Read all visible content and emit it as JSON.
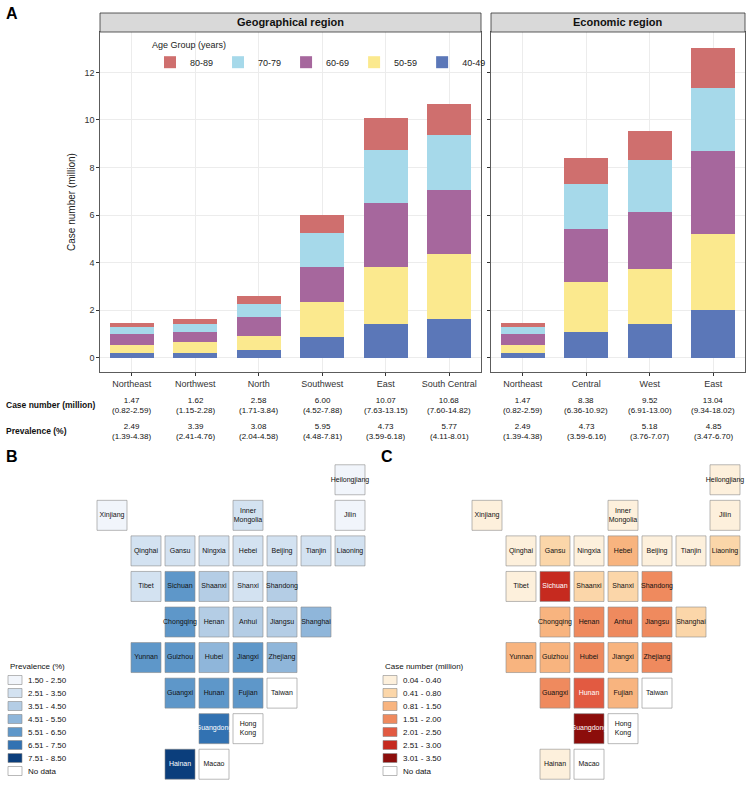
{
  "chart_data": [
    {
      "type": "bar",
      "panel": "A",
      "title": "Geographical region",
      "stacked": true,
      "grid": true,
      "ylabel": "Case number (million)",
      "legend": "top",
      "legend_title": "Age Group (years)",
      "categories": [
        "Northeast",
        "Northwest",
        "North",
        "Southwest",
        "East",
        "South Central"
      ],
      "series": [
        {
          "name": "40-49",
          "color": "#5b77b8",
          "values": [
            0.18,
            0.2,
            0.32,
            0.88,
            1.42,
            1.65
          ]
        },
        {
          "name": "50-59",
          "color": "#fbe98e",
          "values": [
            0.35,
            0.45,
            0.6,
            1.45,
            2.4,
            2.7
          ]
        },
        {
          "name": "60-69",
          "color": "#a6679d",
          "values": [
            0.45,
            0.45,
            0.8,
            1.5,
            2.68,
            2.72
          ]
        },
        {
          "name": "70-79",
          "color": "#a6d9ea",
          "values": [
            0.3,
            0.3,
            0.55,
            1.4,
            2.25,
            2.28
          ]
        },
        {
          "name": "80-89",
          "color": "#cf6f6e",
          "values": [
            0.19,
            0.22,
            0.31,
            0.77,
            1.32,
            1.33
          ]
        }
      ],
      "ylim": [
        -0.6,
        13.7
      ],
      "yticks": [
        0,
        2,
        4,
        6,
        8,
        10,
        12
      ],
      "rows": [
        {
          "label": "Case number (million)",
          "values": [
            "1.47 (0.82-2.59)",
            "1.62 (1.15-2.28)",
            "2.58 (1.71-3.84)",
            "6.00 (4.52-7.88)",
            "10.07 (7.63-13.15)",
            "10.68 (7.60-14.82)"
          ]
        },
        {
          "label": "Prevalence (%)",
          "values": [
            "2.49 (1.39-4.38)",
            "3.39 (2.41-4.76)",
            "3.08 (2.04-4.58)",
            "5.95 (4.48-7.81)",
            "4.73 (3.59-6.18)",
            "5.77 (4.11-8.01)"
          ]
        }
      ]
    },
    {
      "type": "bar",
      "title": "Economic region",
      "stacked": true,
      "grid": true,
      "tick_labels": "x",
      "categories": [
        "Northeast",
        "Central",
        "West",
        "East"
      ],
      "series": [
        {
          "name": "40-49",
          "color": "#5b77b8",
          "values": [
            0.18,
            1.1,
            1.42,
            2.0
          ]
        },
        {
          "name": "50-59",
          "color": "#fbe98e",
          "values": [
            0.35,
            2.1,
            2.3,
            3.2
          ]
        },
        {
          "name": "60-69",
          "color": "#a6679d",
          "values": [
            0.45,
            2.2,
            2.43,
            3.48
          ]
        },
        {
          "name": "70-79",
          "color": "#a6d9ea",
          "values": [
            0.3,
            1.9,
            2.15,
            2.67
          ]
        },
        {
          "name": "80-89",
          "color": "#cf6f6e",
          "values": [
            0.19,
            1.08,
            1.22,
            1.69
          ]
        }
      ],
      "ylim": [
        -0.6,
        13.7
      ],
      "yticks": [
        0,
        2,
        4,
        6,
        8,
        10,
        12
      ],
      "rows": [
        {
          "values": [
            "1.47 (0.82-2.59)",
            "8.38 (6.36-10.92)",
            "9.52 (6.91-13.00)",
            "13.04 (9.34-18.02)"
          ]
        },
        {
          "values": [
            "2.49 (1.39-4.38)",
            "4.73 (3.59-6.16)",
            "5.18 (3.76-7.07)",
            "4.85 (3.47-6.70)"
          ]
        }
      ]
    },
    {
      "type": "map",
      "panel": "B",
      "legend_title": "Prevalence (%)",
      "classes": [
        {
          "label": "1.50 - 2.50",
          "color": "#f1f5fb"
        },
        {
          "label": "2.51 - 3.50",
          "color": "#d3e2f1"
        },
        {
          "label": "3.51 - 4.50",
          "color": "#b4cde5"
        },
        {
          "label": "4.51 - 5.50",
          "color": "#8fb6da"
        },
        {
          "label": "5.51 - 6.50",
          "color": "#5e97c9"
        },
        {
          "label": "6.51 - 7.50",
          "color": "#3272b2"
        },
        {
          "label": "7.51 - 8.50",
          "color": "#0b3e7c"
        }
      ],
      "no_data": {
        "label": "No data",
        "color": "#ffffff"
      },
      "regions": [
        {
          "name": "Heilongjiang",
          "class": 0
        },
        {
          "name": "Jilin",
          "class": 0
        },
        {
          "name": "Liaoning",
          "class": 1
        },
        {
          "name": "Inner Mongolia",
          "class": 1
        },
        {
          "name": "Xinjiang",
          "class": 0
        },
        {
          "name": "Tibet",
          "class": 1
        },
        {
          "name": "Qinghai",
          "class": 1
        },
        {
          "name": "Gansu",
          "class": 1
        },
        {
          "name": "Ningxia",
          "class": 1
        },
        {
          "name": "Hebei",
          "class": 1
        },
        {
          "name": "Beijing",
          "class": 1
        },
        {
          "name": "Tianjin",
          "class": 1
        },
        {
          "name": "Sichuan",
          "class": 4
        },
        {
          "name": "Shaanxi",
          "class": 2
        },
        {
          "name": "Shanxi",
          "class": 1
        },
        {
          "name": "Shandong",
          "class": 2
        },
        {
          "name": "Chongqing",
          "class": 4
        },
        {
          "name": "Henan",
          "class": 2
        },
        {
          "name": "Anhui",
          "class": 2
        },
        {
          "name": "Jiangsu",
          "class": 2
        },
        {
          "name": "Shanghai",
          "class": 3
        },
        {
          "name": "Yunnan",
          "class": 4
        },
        {
          "name": "Guizhou",
          "class": 4
        },
        {
          "name": "Hubei",
          "class": 3
        },
        {
          "name": "Jiangxi",
          "class": 4
        },
        {
          "name": "Zhejiang",
          "class": 3
        },
        {
          "name": "Guangxi",
          "class": 4
        },
        {
          "name": "Hunan",
          "class": 4
        },
        {
          "name": "Fujian",
          "class": 4
        },
        {
          "name": "Taiwan",
          "class": null
        },
        {
          "name": "Guangdong",
          "class": 5
        },
        {
          "name": "Hong Kong",
          "class": null
        },
        {
          "name": "Hainan",
          "class": 6
        },
        {
          "name": "Macao",
          "class": null
        }
      ]
    },
    {
      "type": "map",
      "panel": "C",
      "legend_title": "Case number (million)",
      "classes": [
        {
          "label": "0.04 - 0.40",
          "color": "#fdf0dc"
        },
        {
          "label": "0.41 - 0.80",
          "color": "#fbd6a9"
        },
        {
          "label": "0.81 - 1.50",
          "color": "#f8b47f"
        },
        {
          "label": "1.51 - 2.00",
          "color": "#ef8a5e"
        },
        {
          "label": "2.01 - 2.50",
          "color": "#e25a41"
        },
        {
          "label": "2.51 - 3.00",
          "color": "#c62a1f"
        },
        {
          "label": "3.01 - 3.50",
          "color": "#8c0d0b"
        }
      ],
      "no_data": {
        "label": "No data",
        "color": "#ffffff"
      },
      "regions": [
        {
          "name": "Heilongjiang",
          "class": 0
        },
        {
          "name": "Jilin",
          "class": 0
        },
        {
          "name": "Liaoning",
          "class": 1
        },
        {
          "name": "Inner Mongolia",
          "class": 0
        },
        {
          "name": "Xinjiang",
          "class": 0
        },
        {
          "name": "Tibet",
          "class": 0
        },
        {
          "name": "Qinghai",
          "class": 0
        },
        {
          "name": "Gansu",
          "class": 1
        },
        {
          "name": "Ningxia",
          "class": 0
        },
        {
          "name": "Hebei",
          "class": 2
        },
        {
          "name": "Beijing",
          "class": 0
        },
        {
          "name": "Tianjin",
          "class": 0
        },
        {
          "name": "Sichuan",
          "class": 5
        },
        {
          "name": "Shaanxi",
          "class": 1
        },
        {
          "name": "Shanxi",
          "class": 1
        },
        {
          "name": "Shandong",
          "class": 3
        },
        {
          "name": "Chongqing",
          "class": 2
        },
        {
          "name": "Henan",
          "class": 3
        },
        {
          "name": "Anhui",
          "class": 3
        },
        {
          "name": "Jiangsu",
          "class": 3
        },
        {
          "name": "Shanghai",
          "class": 1
        },
        {
          "name": "Yunnan",
          "class": 2
        },
        {
          "name": "Guizhou",
          "class": 2
        },
        {
          "name": "Hubei",
          "class": 3
        },
        {
          "name": "Jiangxi",
          "class": 2
        },
        {
          "name": "Zhejiang",
          "class": 3
        },
        {
          "name": "Guangxi",
          "class": 3
        },
        {
          "name": "Hunan",
          "class": 4
        },
        {
          "name": "Fujian",
          "class": 2
        },
        {
          "name": "Taiwan",
          "class": null
        },
        {
          "name": "Guangdong",
          "class": 6
        },
        {
          "name": "Hong Kong",
          "class": null
        },
        {
          "name": "Hainan",
          "class": 0
        },
        {
          "name": "Macao",
          "class": null
        }
      ]
    }
  ]
}
